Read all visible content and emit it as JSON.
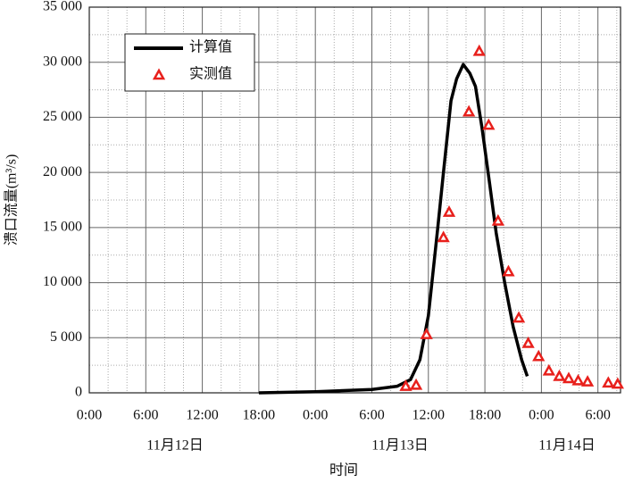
{
  "chart_data": {
    "type": "line",
    "y_label": "溃口流量(m³/s)",
    "x_label": "时间",
    "date_labels": [
      "11月12日",
      "11月13日",
      "11月14日"
    ],
    "xlim": [
      0,
      56.4
    ],
    "xticks": [
      {
        "value": 0,
        "label": "0:00"
      },
      {
        "value": 6,
        "label": "6:00"
      },
      {
        "value": 12,
        "label": "12:00"
      },
      {
        "value": 18,
        "label": "18:00"
      },
      {
        "value": 24,
        "label": "0:00"
      },
      {
        "value": 30,
        "label": "6:00"
      },
      {
        "value": 36,
        "label": "12:00"
      },
      {
        "value": 42,
        "label": "18:00"
      },
      {
        "value": 48,
        "label": "0:00"
      },
      {
        "value": 54,
        "label": "6:00"
      }
    ],
    "ylim": [
      0,
      35000
    ],
    "yticks": [
      0,
      {
        "value": 5000,
        "label": "5 000"
      },
      {
        "value": 10000,
        "label": "10 000"
      },
      {
        "value": 15000,
        "label": "15 000"
      },
      {
        "value": 20000,
        "label": "20 000"
      },
      {
        "value": 25000,
        "label": "25 000"
      },
      {
        "value": 30000,
        "label": "30 000"
      },
      {
        "value": 35000,
        "label": "35 000"
      }
    ],
    "grid": true,
    "minor_grid": true,
    "legend": "upper left",
    "series": [
      {
        "name": "计算值",
        "style": "line",
        "color": "#000000",
        "x": [
          18,
          24,
          30,
          32.7,
          34.1,
          35.1,
          36,
          37,
          37.6,
          38.4,
          39,
          39.7,
          40.4,
          41,
          41.7,
          42.5,
          43.2,
          44.1,
          45,
          45.9,
          46.5
        ],
        "values": [
          0,
          100,
          300,
          600,
          1200,
          3000,
          7000,
          15000,
          20000,
          26500,
          28500,
          29800,
          29000,
          27800,
          24000,
          19000,
          14500,
          10000,
          6000,
          3000,
          1500
        ]
      },
      {
        "name": "实测值",
        "style": "triangle",
        "color": "#e8201c",
        "x": [
          33.6,
          34.7,
          35.8,
          37.6,
          38.2,
          40.3,
          41.4,
          42.4,
          43.4,
          44.5,
          45.6,
          46.6,
          47.7,
          48.8,
          49.9,
          50.9,
          51.9,
          52.9,
          55.1,
          56.1
        ],
        "values": [
          600,
          700,
          5300,
          14100,
          16400,
          25500,
          31000,
          24300,
          15600,
          11000,
          6800,
          4500,
          3300,
          2000,
          1500,
          1300,
          1100,
          1000,
          900,
          800
        ]
      }
    ]
  }
}
